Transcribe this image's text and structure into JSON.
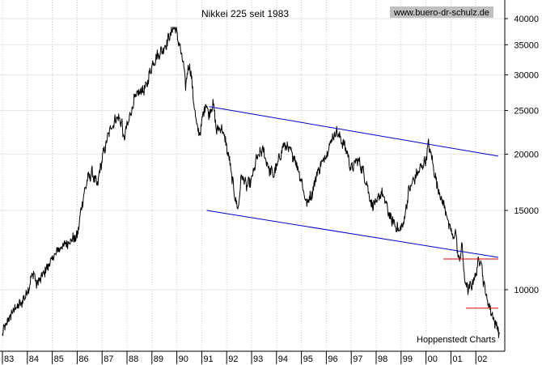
{
  "chart_data": {
    "type": "line",
    "title": "Nikkei 225 seit 1983",
    "watermark": "www.buero-dr-schulz.de",
    "source_note": "Hoppenstedt Charts",
    "y_scale": "log",
    "ylim": [
      7300,
      44000
    ],
    "y_ticks": [
      {
        "value": 40000,
        "label": "40000"
      },
      {
        "value": 35000,
        "label": "35000"
      },
      {
        "value": 30000,
        "label": "30000"
      },
      {
        "value": 25000,
        "label": "25000"
      },
      {
        "value": 20000,
        "label": "20000"
      },
      {
        "value": 15000,
        "label": "15000"
      },
      {
        "value": 10000,
        "label": "10000"
      }
    ],
    "x_ticks": [
      "83",
      "84",
      "85",
      "86",
      "87",
      "88",
      "89",
      "90",
      "91",
      "92",
      "93",
      "94",
      "95",
      "96",
      "97",
      "98",
      "99",
      "00",
      "01",
      "02"
    ],
    "xlim": [
      1983.0,
      2003.0
    ],
    "grid": true,
    "series": [
      {
        "color": "#000000",
        "x": [
          1983.0,
          1983.25,
          1983.5,
          1983.75,
          1984.0,
          1984.25,
          1984.35,
          1984.5,
          1984.75,
          1985.0,
          1985.25,
          1985.5,
          1985.75,
          1986.0,
          1986.2,
          1986.4,
          1986.6,
          1986.8,
          1987.0,
          1987.3,
          1987.6,
          1987.8,
          1987.85,
          1988.0,
          1988.3,
          1988.5,
          1988.75,
          1989.0,
          1989.2,
          1989.5,
          1989.75,
          1989.9,
          1990.0,
          1990.1,
          1990.25,
          1990.35,
          1990.5,
          1990.6,
          1990.75,
          1990.9,
          1991.0,
          1991.15,
          1991.3,
          1991.45,
          1991.6,
          1991.75,
          1991.9,
          1992.1,
          1992.3,
          1992.45,
          1992.6,
          1992.8,
          1993.0,
          1993.2,
          1993.45,
          1993.7,
          1993.9,
          1994.1,
          1994.3,
          1994.5,
          1994.75,
          1995.0,
          1995.2,
          1995.45,
          1995.6,
          1995.8,
          1996.0,
          1996.2,
          1996.4,
          1996.6,
          1996.8,
          1997.0,
          1997.25,
          1997.45,
          1997.65,
          1997.8,
          1998.0,
          1998.2,
          1998.4,
          1998.55,
          1998.75,
          1998.9,
          1999.1,
          1999.3,
          1999.5,
          1999.75,
          1999.9,
          2000.0,
          2000.1,
          2000.2,
          2000.4,
          2000.6,
          2000.8,
          2000.9,
          2001.0,
          2001.1,
          2001.2,
          2001.3,
          2001.45,
          2001.55,
          2001.7,
          2001.85,
          2002.0,
          2002.1,
          2002.2,
          2002.3,
          2002.45,
          2002.6,
          2002.75,
          2002.85,
          2002.95
        ],
        "y": [
          8000,
          8600,
          9100,
          9300,
          9900,
          11000,
          10300,
          10500,
          11100,
          11700,
          12300,
          12600,
          12900,
          13100,
          15600,
          17500,
          18200,
          17000,
          19500,
          22600,
          24200,
          23500,
          21500,
          23000,
          26500,
          27500,
          28000,
          31500,
          33000,
          34500,
          37000,
          38500,
          37000,
          35000,
          32000,
          28500,
          32000,
          29000,
          24000,
          22000,
          23500,
          26000,
          24500,
          26000,
          22500,
          23000,
          22000,
          19500,
          16500,
          15000,
          18000,
          17000,
          17500,
          19500,
          20500,
          18500,
          18000,
          19500,
          21000,
          20500,
          19500,
          17500,
          15500,
          16500,
          18000,
          19000,
          20000,
          21500,
          22500,
          21500,
          20500,
          18500,
          19500,
          18500,
          17000,
          15500,
          15500,
          16500,
          15500,
          14500,
          14000,
          13500,
          14000,
          16500,
          17500,
          18500,
          19000,
          19500,
          21000,
          20000,
          17500,
          16000,
          15000,
          14000,
          13500,
          13000,
          13500,
          11500,
          12500,
          10500,
          10000,
          10300,
          10800,
          11500,
          11800,
          10500,
          9500,
          9000,
          8500,
          8300,
          8000
        ]
      }
    ],
    "annotations": [
      {
        "type": "trendline",
        "color": "#0000cc",
        "x": [
          1991.3,
          2002.9
        ],
        "y": [
          25500,
          19800
        ]
      },
      {
        "type": "trendline",
        "color": "#0000cc",
        "x": [
          1991.2,
          2002.9
        ],
        "y": [
          15000,
          11800
        ]
      },
      {
        "type": "trendline",
        "color": "#dd0000",
        "x": [
          2000.7,
          2002.9
        ],
        "y": [
          11700,
          11700
        ]
      },
      {
        "type": "trendline",
        "color": "#dd0000",
        "x": [
          2001.6,
          2002.9
        ],
        "y": [
          9100,
          9100
        ]
      }
    ]
  }
}
